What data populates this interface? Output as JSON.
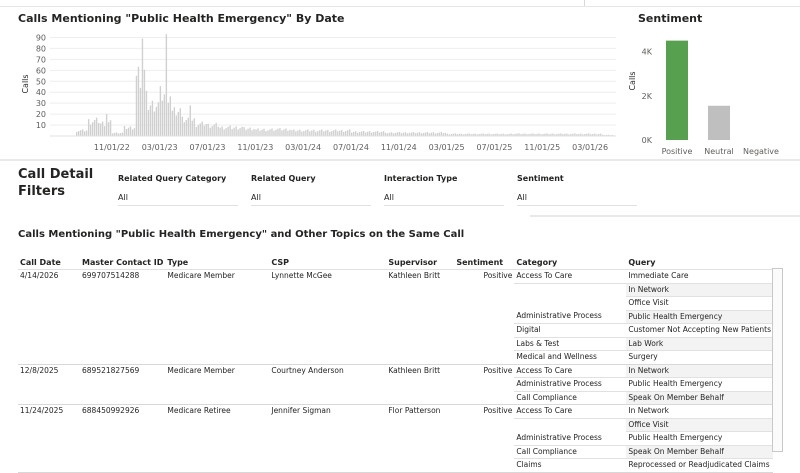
{
  "timeline": {
    "title": "Calls Mentioning \"Public Health Emergency\" By Date",
    "y_axis_label": "Calls",
    "y_ticks": [
      "90",
      "80",
      "70",
      "60",
      "50",
      "40",
      "30",
      "20",
      "10"
    ],
    "x_ticks": [
      "11/01/22",
      "03/01/23",
      "07/01/23",
      "11/01/23",
      "03/01/24",
      "07/01/24",
      "11/01/24",
      "03/01/25",
      "07/01/25",
      "11/01/25",
      "03/01/26"
    ]
  },
  "chart_data": [
    {
      "type": "bar",
      "title": "Calls Mentioning \"Public Health Emergency\" By Date",
      "ylabel": "Calls",
      "ylim": [
        0,
        95
      ],
      "grid": true,
      "color": "#d0d0d0",
      "x": [
        "2022-08",
        "2022-09",
        "2022-10",
        "2022-11",
        "2022-12",
        "2023-01",
        "2023-02",
        "2023-03",
        "2023-04",
        "2023-05",
        "2023-06",
        "2023-07",
        "2023-08",
        "2023-09",
        "2023-10",
        "2023-11",
        "2023-12",
        "2024-01",
        "2024-02",
        "2024-03",
        "2024-04",
        "2024-05",
        "2024-06",
        "2024-07",
        "2024-08",
        "2024-09",
        "2024-10",
        "2024-11",
        "2024-12",
        "2025-01",
        "2025-02",
        "2025-03",
        "2025-04",
        "2025-05",
        "2025-06",
        "2025-07",
        "2025-08",
        "2025-09",
        "2025-10",
        "2025-11",
        "2025-12",
        "2026-01",
        "2026-02",
        "2026-03",
        "2026-04"
      ],
      "values": [
        5,
        14,
        12,
        3,
        8,
        55,
        28,
        38,
        22,
        14,
        11,
        10,
        8,
        8,
        7,
        6,
        6,
        6,
        5,
        5,
        5,
        5,
        5,
        4,
        4,
        4,
        3,
        3,
        3,
        3,
        3,
        2,
        2,
        2,
        2,
        2,
        2,
        2,
        2,
        2,
        2,
        2,
        2,
        2,
        1
      ],
      "peaks": [
        {
          "x": "2022-10",
          "value": 20
        },
        {
          "x": "2023-01",
          "value": 89
        },
        {
          "x": "2023-03",
          "value": 93
        },
        {
          "x": "2023-05",
          "value": 28
        }
      ]
    },
    {
      "type": "bar",
      "title": "Sentiment",
      "ylabel": "Calls",
      "categories": [
        "Positive",
        "Neutral",
        "Negative"
      ],
      "values": [
        4500,
        1550,
        0
      ],
      "colors": [
        "#57a04f",
        "#bfbfbf",
        "#bfbfbf"
      ],
      "y_ticks": [
        "4K",
        "2K",
        "0K"
      ],
      "ylim": [
        0,
        4800
      ]
    }
  ],
  "sentiment": {
    "title": "Sentiment",
    "y_axis_label": "Calls",
    "y_ticks": [
      "4K",
      "2K",
      "0K"
    ],
    "categories": [
      "Positive",
      "Neutral",
      "Negative"
    ]
  },
  "filters": {
    "title_line1": "Call Detail",
    "title_line2": "Filters",
    "items": [
      {
        "label": "Related Query Category",
        "value": "All"
      },
      {
        "label": "Related Query",
        "value": "All"
      },
      {
        "label": "Interaction Type",
        "value": "All"
      },
      {
        "label": "Sentiment",
        "value": "All"
      }
    ]
  },
  "detail_table": {
    "title": "Calls Mentioning \"Public Health Emergency\" and Other Topics on the Same Call",
    "columns": [
      "Call Date",
      "Master Contact ID",
      "Type",
      "CSP",
      "Supervisor",
      "Sentiment",
      "Category",
      "Query"
    ],
    "rows": [
      {
        "call_date": "4/14/2026",
        "contact_id": "699707514288",
        "type": "Medicare Member",
        "csp": "Lynnette McGee",
        "supervisor": "Kathleen Britt",
        "sentiment": "Positive",
        "category": "Access To Care",
        "query": "Immediate Care"
      },
      {
        "call_date": "",
        "contact_id": "",
        "type": "",
        "csp": "",
        "supervisor": "",
        "sentiment": "",
        "category": "",
        "query": "In Network"
      },
      {
        "call_date": "",
        "contact_id": "",
        "type": "",
        "csp": "",
        "supervisor": "",
        "sentiment": "",
        "category": "",
        "query": "Office Visit"
      },
      {
        "call_date": "",
        "contact_id": "",
        "type": "",
        "csp": "",
        "supervisor": "",
        "sentiment": "",
        "category": "Administrative Process",
        "query": "Public Health Emergency"
      },
      {
        "call_date": "",
        "contact_id": "",
        "type": "",
        "csp": "",
        "supervisor": "",
        "sentiment": "",
        "category": "Digital",
        "query": "Customer Not Accepting New Patients"
      },
      {
        "call_date": "",
        "contact_id": "",
        "type": "",
        "csp": "",
        "supervisor": "",
        "sentiment": "",
        "category": "Labs & Test",
        "query": "Lab Work"
      },
      {
        "call_date": "",
        "contact_id": "",
        "type": "",
        "csp": "",
        "supervisor": "",
        "sentiment": "",
        "category": "Medical and Wellness",
        "query": "Surgery"
      },
      {
        "call_date": "12/8/2025",
        "contact_id": "689521827569",
        "type": "Medicare Member",
        "csp": "Courtney Anderson",
        "supervisor": "Kathleen Britt",
        "sentiment": "Positive",
        "category": "Access To Care",
        "query": "In Network"
      },
      {
        "call_date": "",
        "contact_id": "",
        "type": "",
        "csp": "",
        "supervisor": "",
        "sentiment": "",
        "category": "Administrative Process",
        "query": "Public Health Emergency"
      },
      {
        "call_date": "",
        "contact_id": "",
        "type": "",
        "csp": "",
        "supervisor": "",
        "sentiment": "",
        "category": "Call Compliance",
        "query": "Speak On Member Behalf"
      },
      {
        "call_date": "11/24/2025",
        "contact_id": "688450992926",
        "type": "Medicare Retiree",
        "csp": "Jennifer Sigman",
        "supervisor": "Flor Patterson",
        "sentiment": "Positive",
        "category": "Access To Care",
        "query": "In Network"
      },
      {
        "call_date": "",
        "contact_id": "",
        "type": "",
        "csp": "",
        "supervisor": "",
        "sentiment": "",
        "category": "",
        "query": "Office Visit"
      },
      {
        "call_date": "",
        "contact_id": "",
        "type": "",
        "csp": "",
        "supervisor": "",
        "sentiment": "",
        "category": "Administrative Process",
        "query": "Public Health Emergency"
      },
      {
        "call_date": "",
        "contact_id": "",
        "type": "",
        "csp": "",
        "supervisor": "",
        "sentiment": "",
        "category": "Call Compliance",
        "query": "Speak On Member Behalf"
      },
      {
        "call_date": "",
        "contact_id": "",
        "type": "",
        "csp": "",
        "supervisor": "",
        "sentiment": "",
        "category": "Claims",
        "query": "Reprocessed or Readjudicated Claims"
      }
    ]
  }
}
